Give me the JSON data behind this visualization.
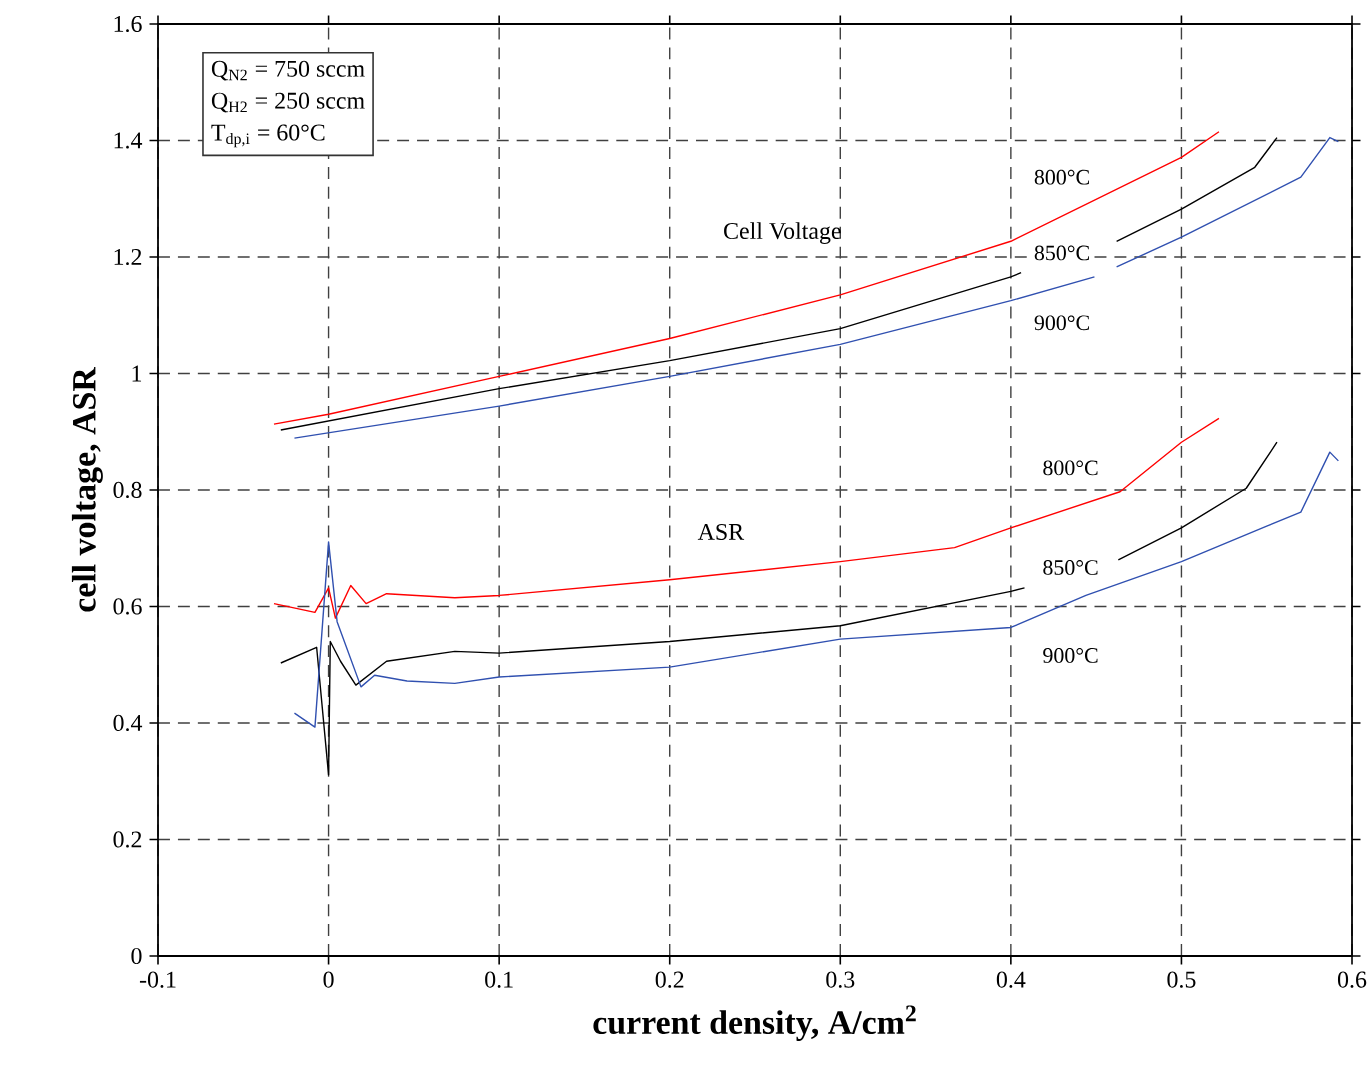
{
  "chart_data": {
    "type": "line",
    "xlabel": "current density, A/cm$^{2}$",
    "ylabel": "cell voltage, ASR",
    "xlim": [
      -0.1,
      0.6
    ],
    "ylim": [
      0,
      1.6
    ],
    "xticks": [
      -0.1,
      0,
      0.1,
      0.2,
      0.3,
      0.4,
      0.5,
      0.6
    ],
    "yticks": [
      0,
      0.2,
      0.4,
      0.6,
      0.8,
      1,
      1.2,
      1.4,
      1.6
    ],
    "grid": true,
    "annotations": [
      "Q$_{N2}$ = 750 sccm",
      "Q$_{H2}$ = 250 sccm",
      "T$_{dp,i}$ = 60°C",
      "Cell Voltage",
      "ASR"
    ],
    "series": [
      {
        "name": "800°C",
        "color": "#ff0000",
        "x": [
          -0.032,
          0,
          0.1,
          0.2,
          0.3,
          0.4,
          0.5,
          0.522
        ],
        "values": [
          0.913,
          0.93,
          0.995,
          1.06,
          1.135,
          1.227,
          1.371,
          1.415
        ]
      },
      {
        "name": "850°C",
        "color": "#000000",
        "x": [
          -0.028,
          0.1,
          0.2,
          0.3,
          0.4,
          0.406,
          0.43,
          0.462,
          0.5,
          0.543,
          0.556
        ],
        "values": [
          0.903,
          0.974,
          1.022,
          1.077,
          1.166,
          1.173,
          null,
          1.227,
          1.282,
          1.354,
          1.405
        ]
      },
      {
        "name": "900°C",
        "color": "#3050b0",
        "x": [
          -0.02,
          0.1,
          0.2,
          0.3,
          0.4,
          0.449,
          0.455,
          0.462,
          0.5,
          0.57,
          0.587,
          0.592
        ],
        "values": [
          0.889,
          0.944,
          0.995,
          1.05,
          1.125,
          1.166,
          null,
          1.183,
          1.234,
          1.337,
          1.405,
          1.398
        ]
      },
      {
        "name": "800°C",
        "color": "#ff0000",
        "x": [
          -0.032,
          -0.008,
          0,
          0.004,
          0.013,
          0.022,
          0.034,
          0.074,
          0.1,
          0.2,
          0.3,
          0.367,
          0.4,
          0.464,
          0.5,
          0.522
        ],
        "values": [
          0.605,
          0.59,
          0.632,
          0.58,
          0.636,
          0.605,
          0.622,
          0.615,
          0.619,
          0.646,
          0.677,
          0.701,
          0.735,
          0.797,
          0.882,
          0.923
        ]
      },
      {
        "name": "850°C",
        "color": "#000000",
        "x": [
          -0.028,
          -0.007,
          0,
          0.001,
          0.007,
          0.016,
          0.034,
          0.074,
          0.1,
          0.2,
          0.3,
          0.4,
          0.408,
          0.43,
          0.463,
          0.5,
          0.538,
          0.556
        ],
        "values": [
          0.503,
          0.53,
          0.311,
          0.54,
          0.506,
          0.465,
          0.506,
          0.523,
          0.52,
          0.54,
          0.567,
          0.626,
          0.632,
          null,
          0.68,
          0.735,
          0.803,
          0.882
        ]
      },
      {
        "name": "900°C",
        "color": "#3050b0",
        "x": [
          -0.02,
          -0.008,
          0,
          0.005,
          0.019,
          0.027,
          0.046,
          0.074,
          0.1,
          0.2,
          0.3,
          0.4,
          0.444,
          0.5,
          0.55,
          0.57,
          0.587,
          0.592
        ],
        "values": [
          0.417,
          0.393,
          0.711,
          0.574,
          0.462,
          0.482,
          0.472,
          0.468,
          0.479,
          0.496,
          0.544,
          0.564,
          0.619,
          0.677,
          0.738,
          0.762,
          0.865,
          0.85
        ]
      }
    ]
  }
}
